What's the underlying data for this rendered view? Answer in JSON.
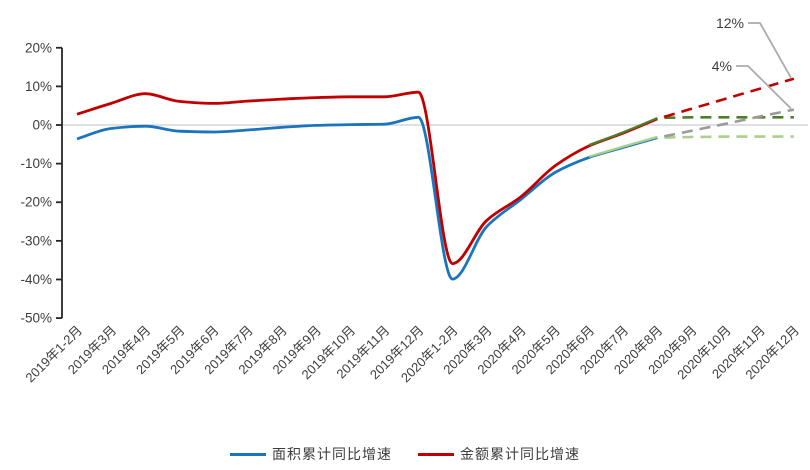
{
  "chart_data": {
    "type": "line",
    "title": "",
    "unit": "%",
    "categories": [
      "2019年1-2月",
      "2019年3月",
      "2019年4月",
      "2019年5月",
      "2019年6月",
      "2019年7月",
      "2019年8月",
      "2019年9月",
      "2019年10月",
      "2019年11月",
      "2019年12月",
      "2020年1-2月",
      "2020年3月",
      "2020年4月",
      "2020年5月",
      "2020年6月",
      "2020年7月",
      "2020年8月",
      "2020年9月",
      "2020年10月",
      "2020年11月",
      "2020年12月"
    ],
    "y_axis": {
      "labels": [
        "20%",
        "10%",
        "0%",
        "-10%",
        "-20%",
        "-30%",
        "-40%",
        "-50%"
      ],
      "values": [
        20,
        10,
        0,
        -10,
        -20,
        -30,
        -40,
        -50
      ],
      "min": -50,
      "max": 20,
      "zero_gridline": true
    },
    "series": [
      {
        "key": "area-actual",
        "name": "面积累计同比增速",
        "color": "#1B75BC",
        "dash": false,
        "width": 2.8,
        "offset": 0,
        "values": [
          -3.6,
          -0.9,
          -0.3,
          -1.6,
          -1.8,
          -1.3,
          -0.6,
          -0.1,
          0.1,
          0.2,
          2.0,
          -39.9,
          -26.3,
          -19.3,
          -12.3,
          -8.4,
          -5.8,
          -3.3,
          null,
          null,
          null,
          null
        ]
      },
      {
        "key": "amount-actual",
        "name": "金额累计同比增速",
        "color": "#C00000",
        "dash": false,
        "width": 2.8,
        "offset": 0,
        "values": [
          2.8,
          5.6,
          8.1,
          6.1,
          5.6,
          6.2,
          6.7,
          7.1,
          7.3,
          7.3,
          8.5,
          -35.9,
          -24.7,
          -18.6,
          -10.6,
          -5.4,
          -2.1,
          1.6,
          null,
          null,
          null,
          null
        ]
      },
      {
        "key": "area-scenario-solid",
        "name": "",
        "color": "#A9D18E",
        "dash": false,
        "width": 2.3,
        "offset": -0.8,
        "values": [
          null,
          null,
          null,
          null,
          null,
          null,
          null,
          null,
          null,
          null,
          null,
          null,
          null,
          null,
          null,
          -8.4,
          -5.8,
          -3.3,
          null,
          null,
          null,
          null
        ]
      },
      {
        "key": "amount-scenario-solid",
        "name": "",
        "color": "#507D2B",
        "dash": false,
        "width": 2.3,
        "offset": -0.8,
        "values": [
          null,
          null,
          null,
          null,
          null,
          null,
          null,
          null,
          null,
          null,
          null,
          null,
          null,
          null,
          null,
          -5.4,
          -2.1,
          1.6,
          null,
          null,
          null,
          null
        ]
      },
      {
        "key": "area-forecast-flat",
        "name": "",
        "color": "#A9D18E",
        "dash": true,
        "width": 2.6,
        "offset": 0,
        "values": [
          null,
          null,
          null,
          null,
          null,
          null,
          null,
          null,
          null,
          null,
          null,
          null,
          null,
          null,
          null,
          null,
          null,
          -3.3,
          -3.1,
          -3.0,
          -3.0,
          -3.0
        ]
      },
      {
        "key": "amount-forecast-flat",
        "name": "",
        "color": "#507D2B",
        "dash": true,
        "width": 2.6,
        "offset": 0,
        "values": [
          null,
          null,
          null,
          null,
          null,
          null,
          null,
          null,
          null,
          null,
          null,
          null,
          null,
          null,
          null,
          null,
          null,
          1.8,
          2.0,
          2.0,
          2.0,
          2.0
        ]
      },
      {
        "key": "area-forecast-high",
        "name": "",
        "color": "#9B9B9B",
        "dash": true,
        "width": 2.6,
        "offset": 0,
        "values": [
          null,
          null,
          null,
          null,
          null,
          null,
          null,
          null,
          null,
          null,
          null,
          null,
          null,
          null,
          null,
          null,
          null,
          -3.3,
          -1.5,
          0.3,
          2.2,
          4.0
        ]
      },
      {
        "key": "amount-forecast-high",
        "name": "",
        "color": "#C00000",
        "dash": true,
        "width": 2.6,
        "offset": 0,
        "values": [
          null,
          null,
          null,
          null,
          null,
          null,
          null,
          null,
          null,
          null,
          null,
          null,
          null,
          null,
          null,
          null,
          null,
          1.6,
          4.2,
          6.8,
          9.4,
          12.0
        ]
      }
    ],
    "annotations": [
      {
        "text": "12%",
        "points_to_value": 12
      },
      {
        "text": "4%",
        "points_to_value": 4
      }
    ],
    "legend": [
      {
        "label": "面积累计同比增速",
        "color": "#1B75BC"
      },
      {
        "label": "金额累计同比增速",
        "color": "#C00000"
      }
    ],
    "colors": {
      "gridline": "#D6D6D6",
      "axis": "#262626",
      "labels": "#3d3d3d",
      "callout": "#ABABAB"
    }
  }
}
